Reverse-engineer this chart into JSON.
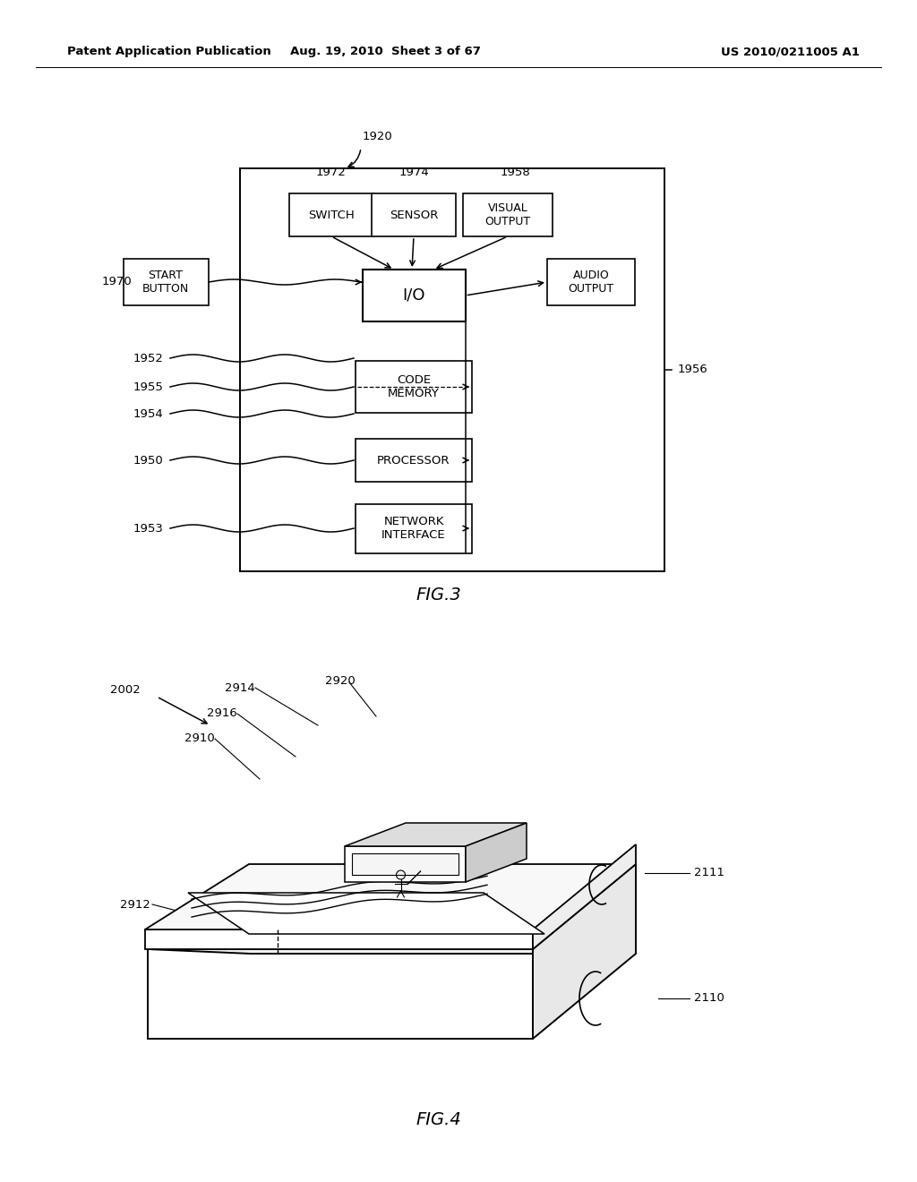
{
  "bg_color": "#ffffff",
  "header_left": "Patent Application Publication",
  "header_center": "Aug. 19, 2010  Sheet 3 of 67",
  "header_right": "US 2010/0211005 A1",
  "fig3_label": "FIG.3",
  "fig4_label": "FIG.4"
}
